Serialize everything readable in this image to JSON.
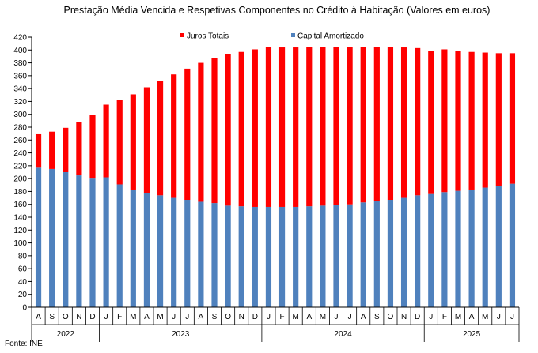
{
  "chart_data": {
    "type": "bar",
    "stacked": true,
    "title": "Prestação Média Vencida e Respetivas Componentes no Crédito à Habitação (Valores em euros)",
    "xlabel": "",
    "ylabel": "",
    "ylim": [
      0,
      420
    ],
    "ytick_step": 20,
    "grid": false,
    "legend_position": "top",
    "months": [
      "A",
      "S",
      "O",
      "N",
      "D",
      "J",
      "F",
      "M",
      "A",
      "M",
      "J",
      "J",
      "A",
      "S",
      "O",
      "N",
      "D",
      "J",
      "F",
      "M",
      "A",
      "M",
      "J",
      "J",
      "A",
      "S",
      "O",
      "N",
      "D",
      "J",
      "F",
      "M",
      "A",
      "M",
      "J",
      "J"
    ],
    "years": [
      {
        "label": "2022",
        "count": 5
      },
      {
        "label": "2023",
        "count": 12
      },
      {
        "label": "2024",
        "count": 12
      },
      {
        "label": "2025",
        "count": 7
      }
    ],
    "series": [
      {
        "name": "Capital Amortizado",
        "color": "#4f81bd",
        "values": [
          217,
          215,
          210,
          205,
          200,
          202,
          191,
          183,
          178,
          174,
          170,
          167,
          164,
          162,
          158,
          157,
          156,
          156,
          156,
          156,
          157,
          158,
          159,
          160,
          163,
          165,
          167,
          170,
          174,
          176,
          179,
          181,
          183,
          186,
          189,
          192
        ]
      },
      {
        "name": "Juros Totais",
        "color": "#ff0000",
        "values": [
          52,
          58,
          69,
          83,
          99,
          113,
          131,
          148,
          164,
          178,
          192,
          204,
          216,
          225,
          235,
          240,
          245,
          249,
          248,
          248,
          248,
          247,
          246,
          245,
          242,
          240,
          238,
          234,
          229,
          223,
          222,
          217,
          214,
          210,
          206,
          203
        ]
      }
    ],
    "legend_order": [
      "Juros Totais",
      "Capital Amortizado"
    ]
  },
  "source": "Fonte: INE"
}
